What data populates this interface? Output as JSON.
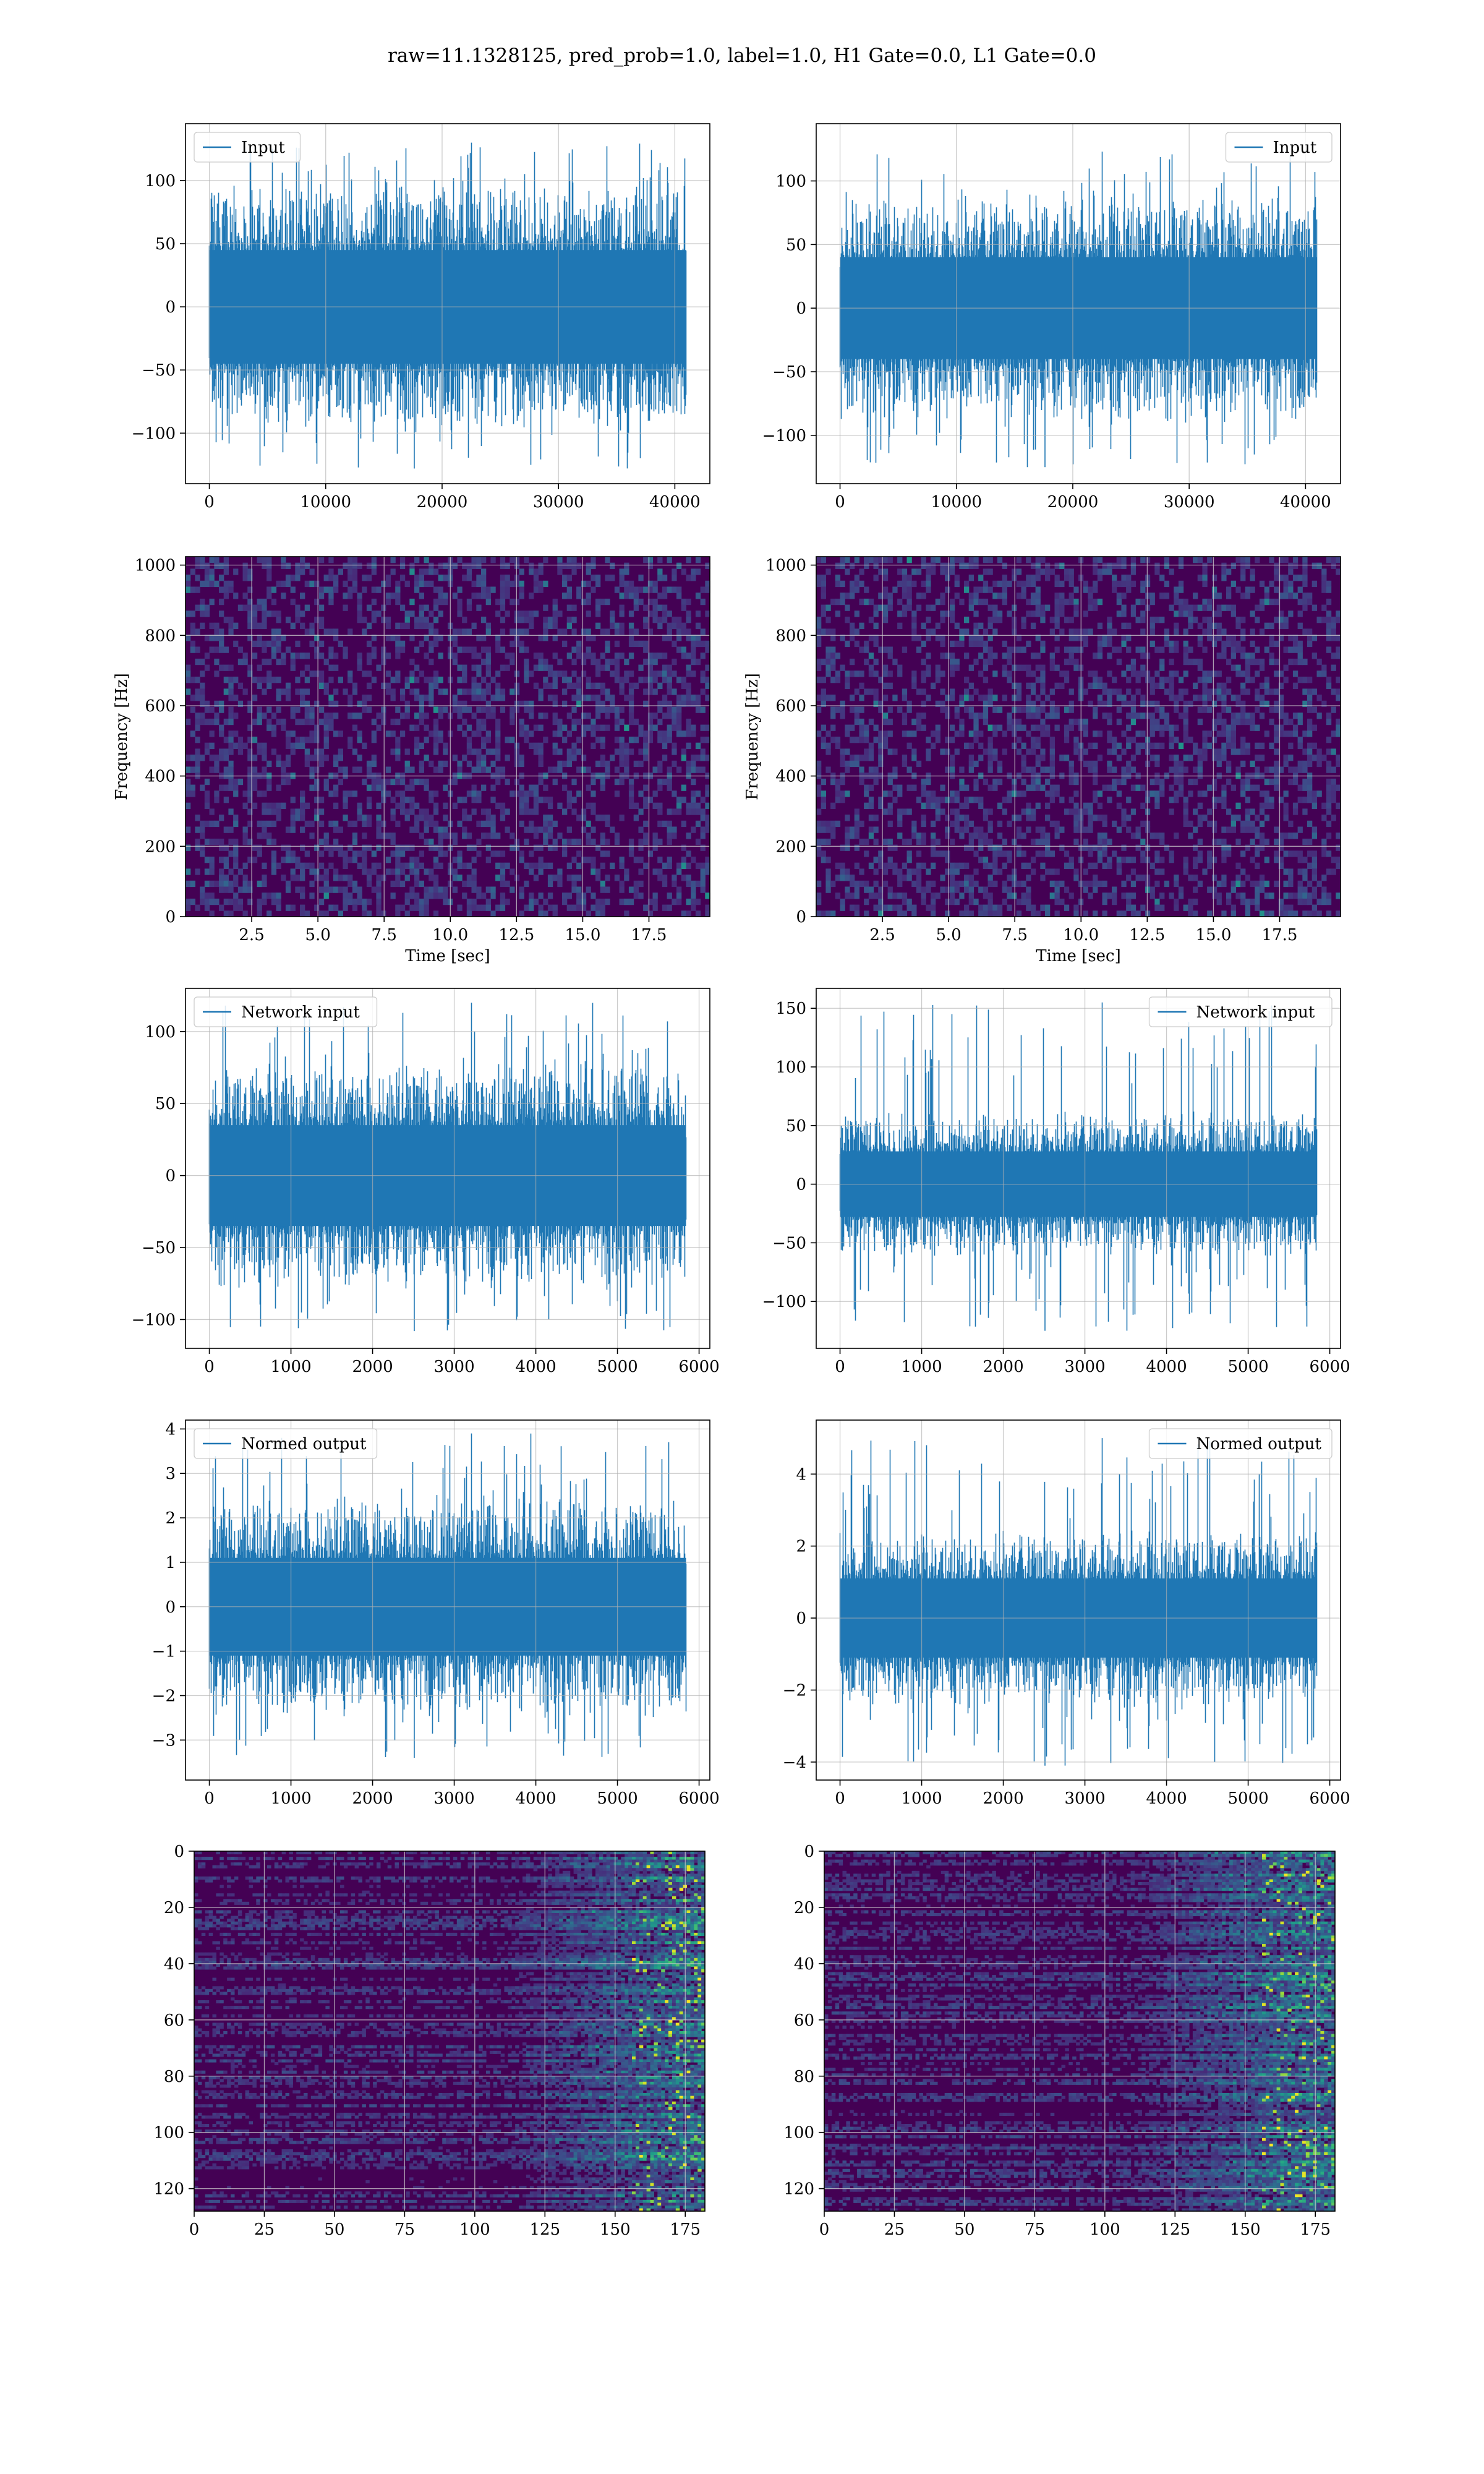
{
  "figure": {
    "title": "raw=11.1328125, pred_prob=1.0, label=1.0, H1 Gate=0.0, L1 Gate=0.0",
    "colors": {
      "line": "#1f77b4",
      "grid": "#b0b0b0",
      "viridis_dark": "#440154"
    }
  },
  "chart_data": [
    {
      "id": "input-h1",
      "type": "line",
      "title": "",
      "xlabel": "",
      "ylabel": "",
      "xlim": [
        -2048,
        43008
      ],
      "ylim": [
        -140,
        145
      ],
      "xticks": [
        0,
        10000,
        20000,
        30000,
        40000
      ],
      "xtick_labels": [
        "0",
        "10000",
        "20000",
        "30000",
        "40000"
      ],
      "yticks": [
        -100,
        -50,
        0,
        50,
        100
      ],
      "ytick_labels": [
        "−100",
        "−50",
        "0",
        "50",
        "100"
      ],
      "grid": true,
      "legend": "upper left",
      "series": [
        {
          "name": "Input",
          "x_range": [
            0,
            40960
          ],
          "core_band": [
            -45,
            45
          ],
          "spike_range": [
            -128,
            130
          ]
        }
      ]
    },
    {
      "id": "input-l1",
      "type": "line",
      "title": "",
      "xlabel": "",
      "ylabel": "",
      "xlim": [
        -2048,
        43008
      ],
      "ylim": [
        -138,
        145
      ],
      "xticks": [
        0,
        10000,
        20000,
        30000,
        40000
      ],
      "xtick_labels": [
        "0",
        "10000",
        "20000",
        "30000",
        "40000"
      ],
      "yticks": [
        -100,
        -50,
        0,
        50,
        100
      ],
      "ytick_labels": [
        "−100",
        "−50",
        "0",
        "50",
        "100"
      ],
      "grid": true,
      "legend": "upper right",
      "series": [
        {
          "name": "Input",
          "x_range": [
            0,
            40960
          ],
          "core_band": [
            -40,
            40
          ],
          "spike_range": [
            -125,
            123
          ]
        }
      ]
    },
    {
      "id": "spectrogram-h1",
      "type": "heatmap",
      "title": "",
      "xlabel": "Time [sec]",
      "ylabel": "Frequency [Hz]",
      "xlim": [
        0,
        19.8
      ],
      "ylim": [
        0,
        1024
      ],
      "xticks": [
        2.5,
        5.0,
        7.5,
        10.0,
        12.5,
        15.0,
        17.5
      ],
      "xtick_labels": [
        "2.5",
        "5.0",
        "7.5",
        "10.0",
        "12.5",
        "15.0",
        "17.5"
      ],
      "yticks": [
        0,
        200,
        400,
        600,
        800,
        1000
      ],
      "ytick_labels": [
        "0",
        "200",
        "400",
        "600",
        "800",
        "1000"
      ],
      "grid": true,
      "colormap": "viridis"
    },
    {
      "id": "spectrogram-l1",
      "type": "heatmap",
      "title": "",
      "xlabel": "Time [sec]",
      "ylabel": "Frequency [Hz]",
      "xlim": [
        0,
        19.8
      ],
      "ylim": [
        0,
        1024
      ],
      "xticks": [
        2.5,
        5.0,
        7.5,
        10.0,
        12.5,
        15.0,
        17.5
      ],
      "xtick_labels": [
        "2.5",
        "5.0",
        "7.5",
        "10.0",
        "12.5",
        "15.0",
        "17.5"
      ],
      "yticks": [
        0,
        200,
        400,
        600,
        800,
        1000
      ],
      "ytick_labels": [
        "0",
        "200",
        "400",
        "600",
        "800",
        "1000"
      ],
      "grid": true,
      "colormap": "viridis"
    },
    {
      "id": "network-input-h1",
      "type": "line",
      "title": "",
      "xlabel": "",
      "ylabel": "",
      "xlim": [
        -292,
        6132
      ],
      "ylim": [
        -120,
        130
      ],
      "xticks": [
        0,
        1000,
        2000,
        3000,
        4000,
        5000,
        6000
      ],
      "xtick_labels": [
        "0",
        "1000",
        "2000",
        "3000",
        "4000",
        "5000",
        "6000"
      ],
      "yticks": [
        -100,
        -50,
        0,
        50,
        100
      ],
      "ytick_labels": [
        "−100",
        "−50",
        "0",
        "50",
        "100"
      ],
      "grid": true,
      "legend": "upper left",
      "series": [
        {
          "name": "Network input",
          "x_range": [
            0,
            5840
          ],
          "core_band": [
            -35,
            35
          ],
          "spike_range": [
            -108,
            120
          ]
        }
      ]
    },
    {
      "id": "network-input-l1",
      "type": "line",
      "title": "",
      "xlabel": "",
      "ylabel": "",
      "xlim": [
        -292,
        6132
      ],
      "ylim": [
        -140,
        167
      ],
      "xticks": [
        0,
        1000,
        2000,
        3000,
        4000,
        5000,
        6000
      ],
      "xtick_labels": [
        "0",
        "1000",
        "2000",
        "3000",
        "4000",
        "5000",
        "6000"
      ],
      "yticks": [
        -100,
        -50,
        0,
        50,
        100,
        150
      ],
      "ytick_labels": [
        "−100",
        "−50",
        "0",
        "50",
        "100",
        "150"
      ],
      "grid": true,
      "legend": "upper right",
      "series": [
        {
          "name": "Network input",
          "x_range": [
            0,
            5840
          ],
          "core_band": [
            -28,
            28
          ],
          "spike_range": [
            -125,
            155
          ]
        }
      ]
    },
    {
      "id": "normed-output-h1",
      "type": "line",
      "title": "",
      "xlabel": "",
      "ylabel": "",
      "xlim": [
        -292,
        6132
      ],
      "ylim": [
        -3.9,
        4.2
      ],
      "xticks": [
        0,
        1000,
        2000,
        3000,
        4000,
        5000,
        6000
      ],
      "xtick_labels": [
        "0",
        "1000",
        "2000",
        "3000",
        "4000",
        "5000",
        "6000"
      ],
      "yticks": [
        -3,
        -2,
        -1,
        0,
        1,
        2,
        3,
        4
      ],
      "ytick_labels": [
        "−3",
        "−2",
        "−1",
        "0",
        "1",
        "2",
        "3",
        "4"
      ],
      "grid": true,
      "legend": "upper left",
      "series": [
        {
          "name": "Normed output",
          "x_range": [
            0,
            5840
          ],
          "core_band": [
            -1.1,
            1.1
          ],
          "spike_range": [
            -3.4,
            3.9
          ]
        }
      ]
    },
    {
      "id": "normed-output-l1",
      "type": "line",
      "title": "",
      "xlabel": "",
      "ylabel": "",
      "xlim": [
        -292,
        6132
      ],
      "ylim": [
        -4.5,
        5.5
      ],
      "xticks": [
        0,
        1000,
        2000,
        3000,
        4000,
        5000,
        6000
      ],
      "xtick_labels": [
        "0",
        "1000",
        "2000",
        "3000",
        "4000",
        "5000",
        "6000"
      ],
      "yticks": [
        -4,
        -2,
        0,
        2,
        4
      ],
      "ytick_labels": [
        "−4",
        "−2",
        "0",
        "2",
        "4"
      ],
      "grid": true,
      "legend": "upper right",
      "series": [
        {
          "name": "Normed output",
          "x_range": [
            0,
            5840
          ],
          "core_band": [
            -1.1,
            1.1
          ],
          "spike_range": [
            -4.1,
            5.0
          ]
        }
      ]
    },
    {
      "id": "feature-map-h1",
      "type": "heatmap",
      "title": "",
      "xlabel": "",
      "ylabel": "",
      "xlim": [
        0,
        182
      ],
      "ylim": [
        128,
        0
      ],
      "xticks": [
        0,
        25,
        50,
        75,
        100,
        125,
        150,
        175
      ],
      "xtick_labels": [
        "0",
        "25",
        "50",
        "75",
        "100",
        "125",
        "150",
        "175"
      ],
      "yticks": [
        0,
        20,
        40,
        60,
        80,
        100,
        120
      ],
      "ytick_labels": [
        "0",
        "20",
        "40",
        "60",
        "80",
        "100",
        "120"
      ],
      "grid": true,
      "colormap": "viridis"
    },
    {
      "id": "feature-map-l1",
      "type": "heatmap",
      "title": "",
      "xlabel": "",
      "ylabel": "",
      "xlim": [
        0,
        182
      ],
      "ylim": [
        128,
        0
      ],
      "xticks": [
        0,
        25,
        50,
        75,
        100,
        125,
        150,
        175
      ],
      "xtick_labels": [
        "0",
        "25",
        "50",
        "75",
        "100",
        "125",
        "150",
        "175"
      ],
      "yticks": [
        0,
        20,
        40,
        60,
        80,
        100,
        120
      ],
      "ytick_labels": [
        "0",
        "20",
        "40",
        "60",
        "80",
        "100",
        "120"
      ],
      "grid": true,
      "colormap": "viridis"
    }
  ]
}
